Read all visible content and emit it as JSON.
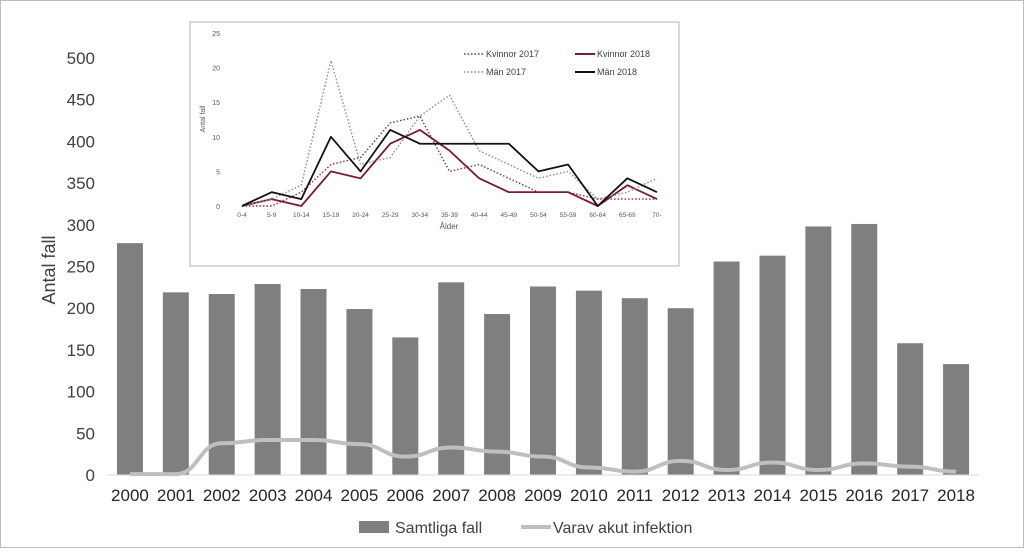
{
  "chart_data": [
    {
      "type": "bar",
      "ylabel": "Antal fall",
      "ylim": [
        0,
        500
      ],
      "yticks": [
        0,
        50,
        100,
        150,
        200,
        250,
        300,
        350,
        400,
        450,
        500
      ],
      "categories": [
        "2000",
        "2001",
        "2002",
        "2003",
        "2004",
        "2005",
        "2006",
        "2007",
        "2008",
        "2009",
        "2010",
        "2011",
        "2012",
        "2013",
        "2014",
        "2015",
        "2016",
        "2017",
        "2018"
      ],
      "series": [
        {
          "name": "Samtliga fall",
          "type": "bar",
          "color": "#7f7f7f",
          "values": [
            278,
            219,
            217,
            229,
            223,
            199,
            165,
            231,
            193,
            226,
            221,
            212,
            200,
            256,
            263,
            298,
            301,
            158,
            133
          ]
        },
        {
          "name": "Varav akut infektion",
          "type": "line",
          "color": "#bfbfbf",
          "values": [
            1,
            1,
            38,
            42,
            42,
            37,
            22,
            33,
            28,
            22,
            9,
            4,
            17,
            6,
            15,
            6,
            14,
            10,
            4
          ]
        }
      ],
      "legend": "bottom",
      "grid": false
    },
    {
      "type": "line",
      "xlabel": "Ålder",
      "ylabel": "Antal fall",
      "ylim": [
        0,
        25
      ],
      "yticks": [
        0,
        5,
        10,
        15,
        20,
        25
      ],
      "categories": [
        "0-4",
        "5-9",
        "10-14",
        "15-19",
        "20-24",
        "25-29",
        "30-34",
        "35-39",
        "40-44",
        "45-49",
        "50-54",
        "55-59",
        "60-64",
        "65-69",
        "70-"
      ],
      "series": [
        {
          "name": "Kvinnor 2017",
          "color": "#8b2b3c",
          "dash": "dotted",
          "values": [
            0,
            0,
            2,
            6,
            7,
            12,
            13,
            5,
            6,
            4,
            2,
            2,
            1,
            1,
            1
          ]
        },
        {
          "name": "Kvinnor 2018",
          "color": "#7b1a30",
          "dash": "solid",
          "values": [
            0,
            1,
            0,
            5,
            4,
            9,
            11,
            8,
            4,
            2,
            2,
            2,
            0,
            3,
            1
          ]
        },
        {
          "name": "Män 2017",
          "color": "#8a8a8a",
          "dash": "dotted",
          "values": [
            0,
            1,
            3,
            21,
            6,
            7,
            13,
            16,
            8,
            6,
            4,
            5,
            1,
            2,
            4
          ]
        },
        {
          "name": "Män 2018",
          "color": "#111111",
          "dash": "solid",
          "values": [
            0,
            2,
            1,
            10,
            5,
            11,
            9,
            9,
            9,
            9,
            5,
            6,
            0,
            4,
            2
          ]
        }
      ],
      "legend": "top-right",
      "grid": false
    }
  ]
}
